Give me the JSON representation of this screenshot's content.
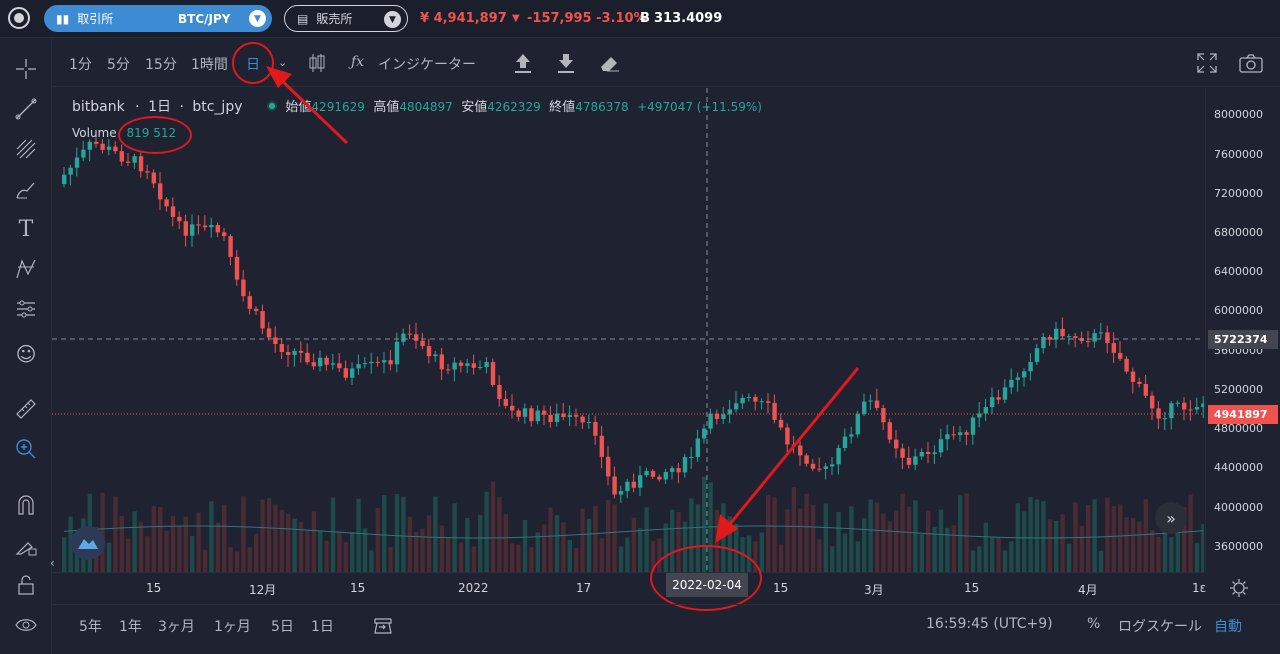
{
  "topbar": {
    "exchange_label": "取引所",
    "pair": "BTC/JPY",
    "shop_label": "販売所",
    "price": "¥ 4,941,897",
    "change": "-157,995 -3.10%",
    "volume": "313.4099",
    "btc_symbol": "Ƀ"
  },
  "toolbar": {
    "timeframes": [
      "1分",
      "5分",
      "15分",
      "1時間",
      "日"
    ],
    "active_timeframe": "日",
    "indicators_label": "インジケーター"
  },
  "legend": {
    "exchange": "bitbank",
    "interval": "1日",
    "symbol": "btc_jpy",
    "open_label": "始値",
    "open": "4291629",
    "high_label": "高値",
    "high": "4804897",
    "low_label": "安値",
    "low": "4262329",
    "close_label": "終値",
    "close": "4786378",
    "change": "+497047 (+11.59%)",
    "volume_label": "Volume",
    "volume_value": "819 512"
  },
  "yaxis": {
    "labels": [
      "8000000",
      "7600000",
      "7200000",
      "6800000",
      "6400000",
      "6000000",
      "5600000",
      "5200000",
      "4800000",
      "4400000",
      "4000000",
      "3600000"
    ],
    "crosshair_price": "5722374",
    "last_price": "4941897"
  },
  "xaxis": {
    "labels": [
      "15",
      "12月",
      "15",
      "2022",
      "17",
      "15",
      "3月",
      "15",
      "4月",
      "1ε"
    ],
    "crosshair_date": "2022-02-04"
  },
  "bottombar": {
    "ranges": [
      "5年",
      "1年",
      "3ヶ月",
      "1ヶ月",
      "5日",
      "1日"
    ],
    "time": "16:59:45 (UTC+9)",
    "percent": "%",
    "log_scale": "ログスケール",
    "auto": "自動"
  },
  "colors": {
    "up": "#26a69a",
    "down": "#ef5350",
    "accent": "#3d8bd3",
    "annotation": "#e0191b"
  }
}
